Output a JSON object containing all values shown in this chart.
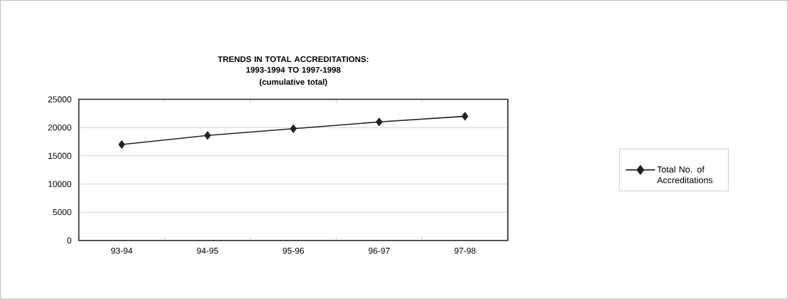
{
  "chart_data": {
    "type": "line",
    "title": "TRENDS IN TOTAL ACCREDITATIONS: 1993-1994 TO 1997-1998",
    "subtitle": "(cumulative total)",
    "categories": [
      "93-94",
      "94-95",
      "95-96",
      "96-97",
      "97-98"
    ],
    "series": [
      {
        "name": "Total No. of Accreditations",
        "color": "#222222",
        "values": [
          17000,
          18600,
          19800,
          21000,
          22000
        ]
      }
    ],
    "ylim": [
      0,
      25000
    ],
    "yticks": [
      0,
      5000,
      10000,
      15000,
      20000,
      25000
    ],
    "grid": "y",
    "legend": "right",
    "marker": "diamond",
    "line_style": "solid"
  }
}
